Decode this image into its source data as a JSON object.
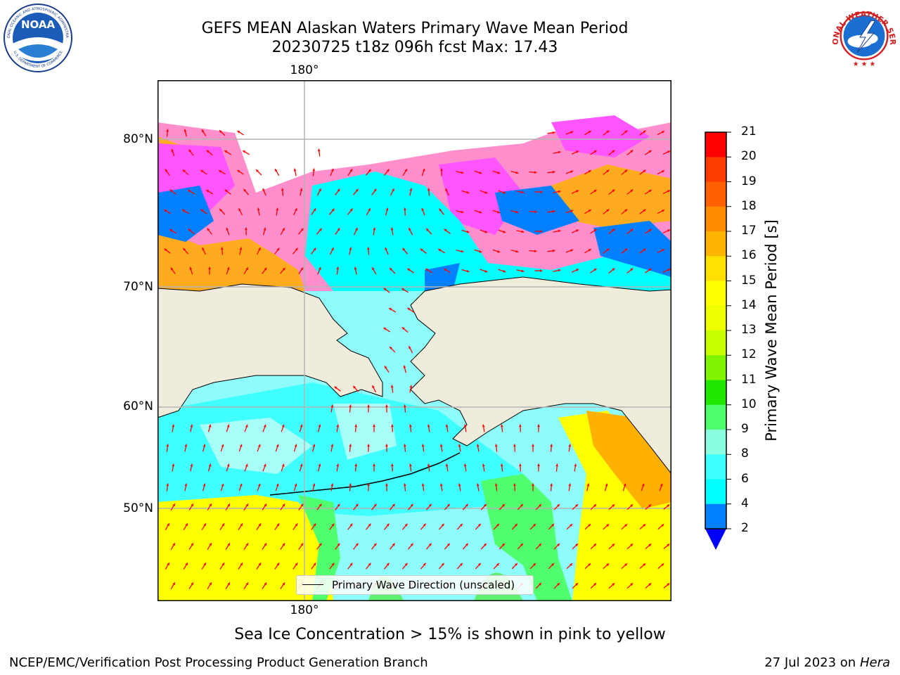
{
  "title": {
    "line1": "GEFS MEAN Alaskan Waters Primary Wave Mean Period",
    "line2": "20230725 t18z 096h fcst   Max: 17.43"
  },
  "map": {
    "lon_label_top": "180°",
    "lon_label_bottom": "180°",
    "lat_labels": [
      "80°N",
      "70°N",
      "60°N",
      "50°N"
    ],
    "legend_label": "Primary Wave Direction (unscaled)",
    "arrow_color": "#ff0000",
    "land_color": "#efecdc",
    "ocean_colors": {
      "blue": "#0080ff",
      "cyan": "#00ffff",
      "light_cyan": "#8ffcfc",
      "green": "#50ff70",
      "yellow": "#ffff00",
      "orange": "#ffb000",
      "magenta": "#ff66ff"
    }
  },
  "colorbar": {
    "title": "Primary Wave Mean Period [s]",
    "ticks": [
      "21",
      "20",
      "19",
      "18",
      "17",
      "16",
      "15",
      "14",
      "13",
      "12",
      "11",
      "10",
      "9",
      "8",
      "6",
      "4",
      "2"
    ],
    "colors": [
      "#ff0000",
      "#ff3c00",
      "#ff6000",
      "#ff8c00",
      "#ffb400",
      "#ffe000",
      "#ffff00",
      "#eeff00",
      "#c8ff00",
      "#80f400",
      "#20e800",
      "#50ff70",
      "#8affe0",
      "#40ffff",
      "#00ffff",
      "#0080ff"
    ],
    "extend_color": "#0000ff"
  },
  "note": "Sea Ice Concentration > 15% is shown in pink to yellow",
  "footer": {
    "left": "NCEP/EMC/Verification Post Processing Product Generation Branch",
    "right_date": "27 Jul 2023 on",
    "right_host": "Hera"
  },
  "logos": {
    "noaa_text": "NOAA",
    "noaa_ring_top": "NATIONAL OCEANIC AND ATMOSPHERIC ADMINISTRATION",
    "noaa_ring_bottom": "U.S. DEPARTMENT OF COMMERCE",
    "nws_ring": "NATIONAL WEATHER SERVICE"
  }
}
